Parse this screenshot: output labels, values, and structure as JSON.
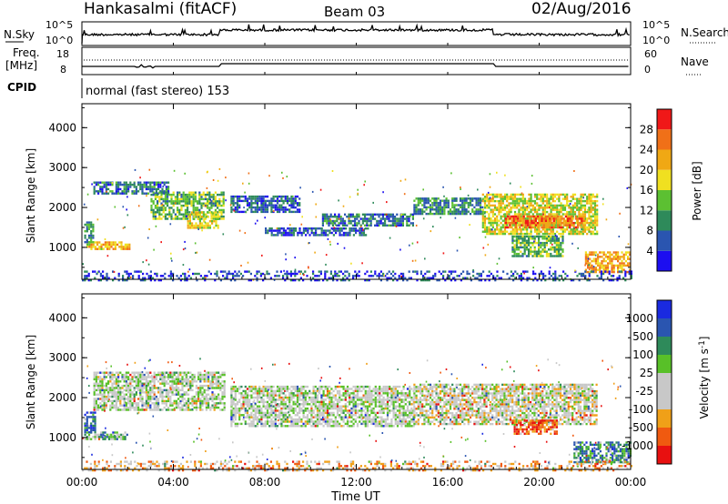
{
  "header": {
    "station": "Hankasalmi (fitACF)",
    "beam": "Beam 03",
    "date": "02/Aug/2016"
  },
  "panels": {
    "sky": {
      "left_label": "N.Sky",
      "left_ticks": [
        "10^5",
        "10^0"
      ],
      "right_ticks": [
        "10^5",
        "10^0"
      ],
      "right_label": "N.Search"
    },
    "freq": {
      "left_label_1": "Freq.",
      "left_label_2": "[MHz]",
      "left_ticks": [
        "18",
        "8"
      ],
      "right_ticks": [
        "60",
        "0"
      ],
      "right_label": "Nave"
    },
    "cpid": {
      "label": "CPID",
      "text": "normal (fast stereo) 153"
    }
  },
  "colors": {
    "power": [
      "#1c0ef0",
      "#2a55b0",
      "#2e8a5a",
      "#5cc032",
      "#f0e020",
      "#f0a814",
      "#f07018",
      "#f01818"
    ],
    "velocity": [
      "#e81010",
      "#f05a10",
      "#f0a018",
      "#c8c8c8",
      "#c8c8c8",
      "#58c028",
      "#2e8a5a",
      "#2a55b0",
      "#1a2ae0"
    ]
  },
  "chart_data": [
    {
      "type": "heatmap",
      "name": "Power",
      "ylabel": "Slant Range [km]",
      "yticks": [
        "1000",
        "2000",
        "3000",
        "4000"
      ],
      "ylim": [
        200,
        4600
      ],
      "xlim": [
        0,
        24
      ],
      "colorbar_label": "Power [dB]",
      "colorbar_ticks": [
        "4",
        "8",
        "12",
        "16",
        "20",
        "24",
        "28"
      ],
      "colorbar_range": [
        0,
        32
      ],
      "regions": [
        {
          "t0": 0.2,
          "t1": 2.1,
          "r0": 950,
          "r1": 1150,
          "level": 0.65
        },
        {
          "t0": 0.1,
          "t1": 0.5,
          "r0": 1150,
          "r1": 1650,
          "level": 0.35
        },
        {
          "t0": 0.5,
          "t1": 3.8,
          "r0": 2350,
          "r1": 2650,
          "level": 0.25
        },
        {
          "t0": 3.0,
          "t1": 6.2,
          "r0": 1700,
          "r1": 2400,
          "level": 0.4
        },
        {
          "t0": 4.6,
          "t1": 6.0,
          "r0": 1500,
          "r1": 1900,
          "level": 0.55
        },
        {
          "t0": 6.5,
          "t1": 9.5,
          "r0": 1900,
          "r1": 2300,
          "level": 0.2
        },
        {
          "t0": 8.0,
          "t1": 12.5,
          "r0": 1300,
          "r1": 1500,
          "level": 0.2
        },
        {
          "t0": 10.5,
          "t1": 14.5,
          "r0": 1550,
          "r1": 1850,
          "level": 0.25
        },
        {
          "t0": 14.5,
          "t1": 17.5,
          "r0": 1850,
          "r1": 2250,
          "level": 0.3
        },
        {
          "t0": 17.5,
          "t1": 22.5,
          "r0": 1350,
          "r1": 2350,
          "level": 0.55
        },
        {
          "t0": 18.5,
          "t1": 22.0,
          "r0": 1500,
          "r1": 1800,
          "level": 0.8
        },
        {
          "t0": 18.8,
          "t1": 21.0,
          "r0": 800,
          "r1": 1300,
          "level": 0.4
        },
        {
          "t0": 22.0,
          "t1": 24.0,
          "r0": 380,
          "r1": 900,
          "level": 0.7
        },
        {
          "t0": 0.0,
          "t1": 24.0,
          "r0": 200,
          "r1": 420,
          "level": 0.15
        }
      ]
    },
    {
      "type": "heatmap",
      "name": "Velocity",
      "ylabel": "Slant Range [km]",
      "yticks": [
        "1000",
        "2000",
        "3000",
        "4000"
      ],
      "ylim": [
        200,
        4600
      ],
      "xlim": [
        0,
        24
      ],
      "colorbar_label": "Velocity [m s^-1]",
      "colorbar_ticks": [
        "1000",
        "500",
        "100",
        "25",
        "-25",
        "-100",
        "-500",
        "-1000"
      ],
      "regions": [
        {
          "t0": 0.1,
          "t1": 2.0,
          "r0": 950,
          "r1": 1150,
          "level": 0.62
        },
        {
          "t0": 0.1,
          "t1": 0.6,
          "r0": 1150,
          "r1": 1650,
          "level": 0.8
        },
        {
          "t0": 0.5,
          "t1": 6.2,
          "r0": 1700,
          "r1": 2650,
          "level": 0.5
        },
        {
          "t0": 6.5,
          "t1": 14.5,
          "r0": 1300,
          "r1": 2300,
          "level": 0.5
        },
        {
          "t0": 14.5,
          "t1": 22.5,
          "r0": 1350,
          "r1": 2350,
          "level": 0.45
        },
        {
          "t0": 18.8,
          "t1": 20.8,
          "r0": 1100,
          "r1": 1450,
          "level": 0.15
        },
        {
          "t0": 21.5,
          "t1": 24.0,
          "r0": 380,
          "r1": 900,
          "level": 0.72
        },
        {
          "t0": 0.0,
          "t1": 24.0,
          "r0": 200,
          "r1": 420,
          "level": 0.3
        }
      ]
    }
  ],
  "xaxis": {
    "label": "Time UT",
    "ticks": [
      "00:00",
      "04:00",
      "08:00",
      "12:00",
      "16:00",
      "20:00",
      "00:00"
    ]
  }
}
